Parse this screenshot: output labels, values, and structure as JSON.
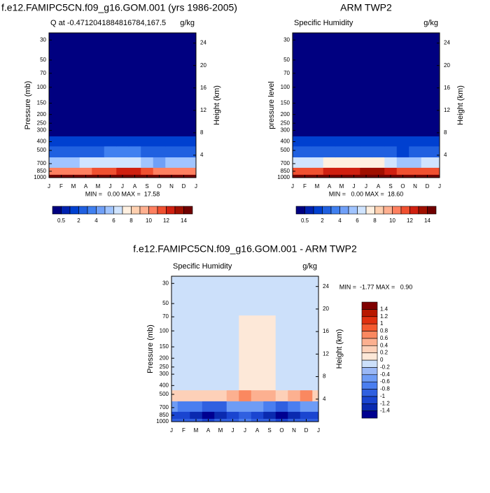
{
  "chart_data": [
    {
      "type": "contour",
      "title": "f.e12.FAMIPC5CN.f09_g16.GOM.001 (yrs 1986-2005)",
      "left_string": "Q at -0.4712041884816784,167.5",
      "right_string": "g/kg",
      "ylabel": "Pressure (mb)",
      "y2label": "Height (km)",
      "stats_text": "MIN =   0.00 MAX =  17.58",
      "categories": [
        "J",
        "F",
        "M",
        "A",
        "M",
        "J",
        "J",
        "A",
        "S",
        "O",
        "N",
        "D",
        "J"
      ],
      "y": [
        1000,
        850,
        700,
        500,
        400,
        300,
        150,
        30
      ],
      "ylim": [
        1000,
        25
      ],
      "log_y": true,
      "yticks": [
        30,
        50,
        70,
        100,
        150,
        200,
        250,
        300,
        400,
        500,
        700,
        850,
        1000
      ],
      "y2ticks": [
        4,
        8,
        12,
        16,
        20,
        24
      ],
      "z": [
        [
          15,
          15,
          15,
          15.5,
          16,
          16.5,
          17,
          17.5,
          17,
          16.5,
          16,
          15.5,
          15
        ],
        [
          10,
          10,
          10,
          10.5,
          11,
          11.5,
          12,
          12,
          11.5,
          10,
          10,
          10,
          10
        ],
        [
          5.5,
          5.5,
          5.5,
          6,
          6,
          6.5,
          6.5,
          6.5,
          5,
          4,
          5,
          5.5,
          5.5
        ],
        [
          2.5,
          2.5,
          2.5,
          2.5,
          2.5,
          3,
          3,
          3,
          2.5,
          2,
          2.5,
          2.5,
          2.5
        ],
        [
          1.2,
          1.2,
          1.2,
          1.2,
          1.2,
          1.5,
          1.5,
          1.5,
          1.2,
          1,
          1.2,
          1.2,
          1.2
        ],
        [
          0.4,
          0.4,
          0.4,
          0.4,
          0.4,
          0.4,
          0.4,
          0.4,
          0.4,
          0.4,
          0.4,
          0.4,
          0.4
        ],
        [
          0,
          0,
          0,
          0,
          0,
          0,
          0,
          0,
          0,
          0,
          0,
          0,
          0
        ],
        [
          0,
          0,
          0,
          0,
          0,
          0,
          0,
          0,
          0,
          0,
          0,
          0,
          0
        ]
      ],
      "colorbar": {
        "orientation": "horizontal",
        "label_every": 2,
        "levels": [
          0.5,
          1,
          2,
          3,
          4,
          5,
          6,
          7,
          8,
          9,
          10,
          11,
          12,
          13,
          14
        ],
        "colors": [
          "#000080",
          "#0022b0",
          "#0040d0",
          "#2060e0",
          "#4080f0",
          "#70a0f8",
          "#a0c4ff",
          "#d0e4ff",
          "#fff0e0",
          "#ffd0b0",
          "#ffb090",
          "#ff8060",
          "#f05030",
          "#d02010",
          "#a01000",
          "#700000"
        ]
      }
    },
    {
      "type": "contour",
      "title": "ARM TWP2",
      "left_string": "Specific Humidity",
      "right_string": "g/kg",
      "ylabel": "pressure level",
      "y2label": "Height (km)",
      "stats_text": "MIN =   0.00 MAX =  18.60",
      "categories": [
        "J",
        "F",
        "M",
        "A",
        "M",
        "J",
        "J",
        "A",
        "S",
        "O",
        "N",
        "D",
        "J"
      ],
      "y": [
        1000,
        850,
        700,
        500,
        400,
        300,
        150,
        30
      ],
      "ylim": [
        1000,
        25
      ],
      "log_y": true,
      "yticks": [
        30,
        50,
        70,
        100,
        150,
        200,
        250,
        300,
        400,
        500,
        700,
        850,
        1000
      ],
      "y2ticks": [
        4,
        8,
        12,
        16,
        20,
        24
      ],
      "z": [
        [
          16,
          16,
          16,
          16.5,
          17,
          17.5,
          18,
          18.5,
          18,
          17.5,
          17,
          16.5,
          16
        ],
        [
          11,
          11,
          11.5,
          12,
          12.5,
          12.5,
          13,
          13,
          12.5,
          11.5,
          11.5,
          11,
          11
        ],
        [
          6,
          6,
          6.5,
          7,
          7,
          7,
          7,
          7,
          6,
          5,
          5.5,
          6,
          6
        ],
        [
          2.2,
          2.2,
          2.2,
          2.2,
          2.2,
          2.6,
          2.5,
          2.5,
          2.2,
          1.8,
          2,
          2,
          2.2
        ],
        [
          1.1,
          1.1,
          1.1,
          1.1,
          1.1,
          1.3,
          1.3,
          1.3,
          1.1,
          1,
          1.1,
          1.1,
          1.1
        ],
        [
          0.4,
          0.4,
          0.4,
          0.4,
          0.4,
          0.4,
          0.4,
          0.4,
          0.4,
          0.4,
          0.4,
          0.4,
          0.4
        ],
        [
          0,
          0,
          0,
          0,
          0,
          0,
          0,
          0,
          0,
          0,
          0,
          0,
          0
        ],
        [
          0,
          0,
          0,
          0,
          0,
          0,
          0,
          0,
          0,
          0,
          0,
          0,
          0
        ]
      ],
      "colorbar": {
        "orientation": "horizontal",
        "label_every": 2,
        "levels": [
          0.5,
          1,
          2,
          3,
          4,
          5,
          6,
          7,
          8,
          9,
          10,
          11,
          12,
          13,
          14
        ],
        "colors": [
          "#000080",
          "#0022b0",
          "#0040d0",
          "#2060e0",
          "#4080f0",
          "#70a0f8",
          "#a0c4ff",
          "#d0e4ff",
          "#fff0e0",
          "#ffd0b0",
          "#ffb090",
          "#ff8060",
          "#f05030",
          "#d02010",
          "#a01000",
          "#700000"
        ]
      }
    },
    {
      "type": "contour",
      "title": "f.e12.FAMIPC5CN.f09_g16.GOM.001 - ARM TWP2",
      "left_string": "Specific Humidity",
      "right_string": "g/kg",
      "ylabel": "Pressure (mb)",
      "y2label": "Height (km)",
      "stats_text": "MIN =  -1.77 MAX =   0.90",
      "categories": [
        "J",
        "F",
        "M",
        "A",
        "M",
        "J",
        "J",
        "A",
        "S",
        "O",
        "N",
        "D",
        "J"
      ],
      "y": [
        1000,
        850,
        700,
        500,
        400,
        300,
        150,
        30
      ],
      "ylim": [
        1000,
        25
      ],
      "log_y": true,
      "yticks": [
        30,
        50,
        70,
        100,
        150,
        200,
        250,
        300,
        400,
        500,
        700,
        850,
        1000
      ],
      "y2ticks": [
        4,
        8,
        12,
        16,
        20,
        24
      ],
      "z": [
        [
          -0.9,
          -0.9,
          -1,
          -1.1,
          -1,
          -0.9,
          -0.8,
          -0.9,
          -1,
          -1.1,
          -1,
          -0.9,
          -0.9
        ],
        [
          -1.1,
          -1.2,
          -1.3,
          -1.6,
          -1.4,
          -1.1,
          -1,
          -1.1,
          -1.3,
          -1.5,
          -1.3,
          -1.1,
          -1.1
        ],
        [
          -0.6,
          -0.7,
          -0.8,
          -1,
          -0.9,
          -0.6,
          -0.5,
          -0.6,
          -0.8,
          -0.9,
          -0.7,
          -0.6,
          -0.6
        ],
        [
          0.3,
          0.3,
          0.3,
          0.3,
          0.3,
          0.4,
          0.6,
          0.5,
          0.4,
          0.3,
          0.4,
          0.7,
          0.3
        ],
        [
          -0.05,
          -0.05,
          -0.05,
          -0.05,
          -0.05,
          -0.05,
          0.1,
          0.1,
          0.1,
          -0.05,
          -0.05,
          -0.05,
          -0.05
        ],
        [
          -0.05,
          -0.05,
          -0.05,
          -0.05,
          -0.05,
          -0.05,
          0.05,
          0.1,
          0.1,
          -0.05,
          -0.05,
          -0.05,
          -0.05
        ],
        [
          -0.05,
          -0.05,
          -0.05,
          -0.05,
          -0.05,
          -0.05,
          0.15,
          0.15,
          0.15,
          -0.05,
          -0.05,
          -0.05,
          -0.05
        ],
        [
          -0.05,
          -0.05,
          -0.05,
          -0.05,
          -0.05,
          -0.05,
          -0.05,
          -0.05,
          -0.05,
          -0.05,
          -0.05,
          -0.05,
          -0.05
        ]
      ],
      "colorbar": {
        "orientation": "vertical",
        "label_every": 1,
        "levels": [
          -1.4,
          -1.2,
          -1,
          -0.8,
          -0.6,
          -0.4,
          -0.2,
          0,
          0.2,
          0.4,
          0.6,
          0.8,
          1,
          1.2,
          1.4
        ],
        "colors": [
          "#000090",
          "#0a2ab0",
          "#1a45d0",
          "#3060e0",
          "#4a7ef0",
          "#6e9cf5",
          "#9ab8f6",
          "#cce0fa",
          "#fde8d8",
          "#fdd0b8",
          "#fcb090",
          "#fa8860",
          "#f45a30",
          "#e03010",
          "#b81800",
          "#800000"
        ]
      }
    }
  ]
}
